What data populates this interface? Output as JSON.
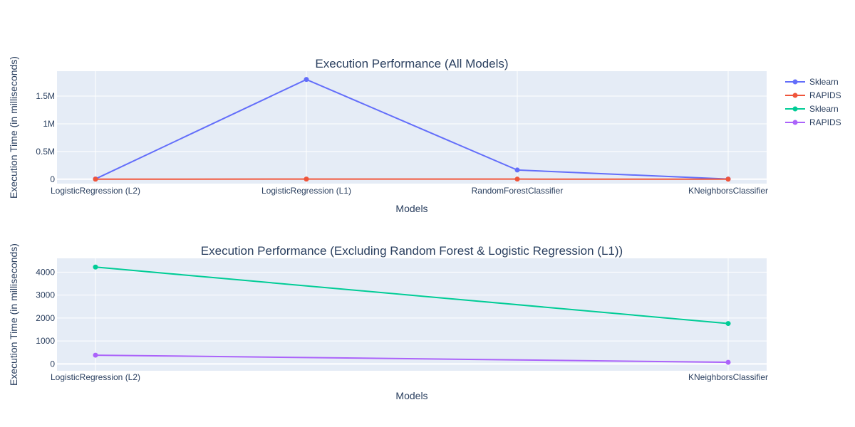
{
  "chart_data": [
    {
      "type": "line",
      "title": "Execution Performance (All Models)",
      "xlabel": "Models",
      "ylabel": "Execution Time (in milliseconds)",
      "categories": [
        "LogisticRegression (L2)",
        "LogisticRegression (L1)",
        "RandomForestClassifier",
        "KNeighborsClassifier"
      ],
      "ylim": [
        -80000,
        1950000
      ],
      "yticks": [
        0,
        500000,
        1000000,
        1500000
      ],
      "ytick_labels": [
        "0",
        "0.5M",
        "1M",
        "1.5M"
      ],
      "grid": true,
      "series": [
        {
          "name": "Sklearn",
          "color": "#636efa",
          "values": [
            4200,
            1800000,
            165000,
            1750
          ]
        },
        {
          "name": "RAPIDS",
          "color": "#ef553b",
          "values": [
            380,
            2000,
            1200,
            70
          ]
        }
      ]
    },
    {
      "type": "line",
      "title": "Execution Performance (Excluding Random Forest & Logistic Regression (L1))",
      "xlabel": "Models",
      "ylabel": "Execution Time (in milliseconds)",
      "categories": [
        "LogisticRegression (L2)",
        "KNeighborsClassifier"
      ],
      "ylim": [
        -300,
        4600
      ],
      "yticks": [
        0,
        1000,
        2000,
        3000,
        4000
      ],
      "ytick_labels": [
        "0",
        "1000",
        "2000",
        "3000",
        "4000"
      ],
      "grid": true,
      "series": [
        {
          "name": "Sklearn",
          "color": "#00cc96",
          "values": [
            4220,
            1760
          ]
        },
        {
          "name": "RAPIDS",
          "color": "#ab63fa",
          "values": [
            380,
            70
          ]
        }
      ]
    }
  ],
  "legend": {
    "placement": "top-right",
    "items": [
      {
        "name": "Sklearn",
        "color": "#636efa"
      },
      {
        "name": "RAPIDS",
        "color": "#ef553b"
      },
      {
        "name": "Sklearn",
        "color": "#00cc96"
      },
      {
        "name": "RAPIDS",
        "color": "#ab63fa"
      }
    ]
  }
}
